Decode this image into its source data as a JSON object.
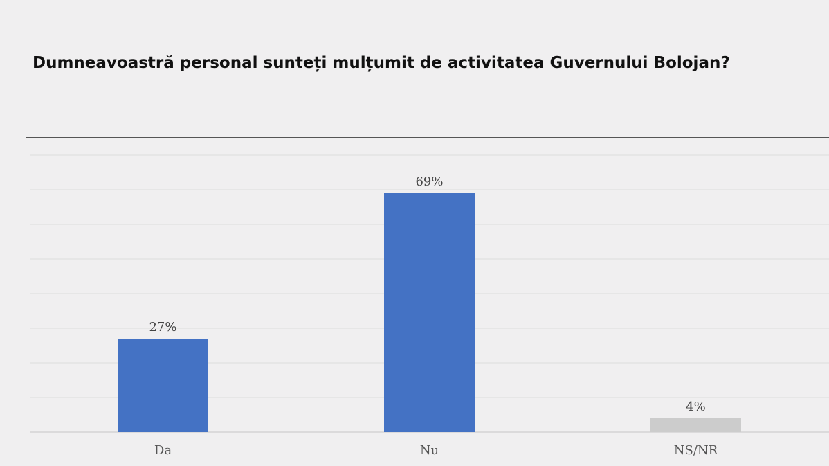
{
  "title": "Dumneavoastră personal sunteți mulțumit de activitatea Guvernului Bolojan?",
  "chart_data": {
    "type": "bar",
    "categories": [
      "Da",
      "Nu",
      "NS/NR"
    ],
    "values": [
      27,
      69,
      4
    ],
    "value_labels": [
      "27%",
      "69%",
      "4%"
    ],
    "colors": [
      "#4472c4",
      "#4472c4",
      "#cccccc"
    ],
    "ylim": [
      0,
      80
    ],
    "grid": true,
    "xlabel": "",
    "ylabel": ""
  }
}
